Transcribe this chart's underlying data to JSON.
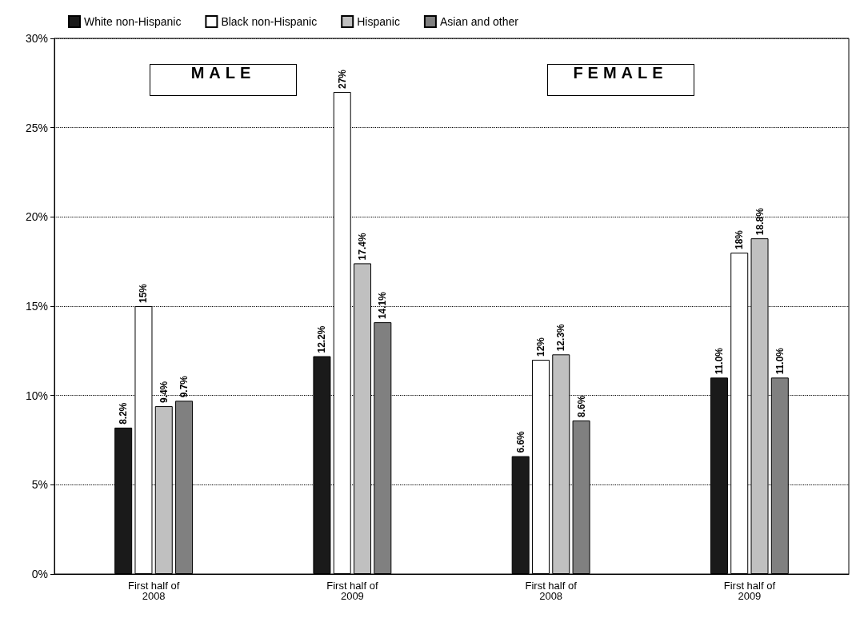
{
  "chart_data": {
    "type": "bar",
    "categories": [
      "First half of\n2008",
      "First half of\n2009",
      "First half of\n2008",
      "First half of\n2009"
    ],
    "series": [
      {
        "name": "White non-Hispanic",
        "color": "#1a1a1a",
        "values": [
          8.2,
          12.2,
          6.6,
          11.0
        ],
        "value_labels": [
          "8.2%",
          "12.2%",
          "6.6%",
          "11.0%"
        ]
      },
      {
        "name": "Black non-Hispanic",
        "color": "#ffffff",
        "values": [
          15,
          27,
          12,
          18
        ],
        "value_labels": [
          "15%",
          "27%",
          "12%",
          "18%"
        ]
      },
      {
        "name": "Hispanic",
        "color": "#c0c0c0",
        "values": [
          9.4,
          17.4,
          12.3,
          18.8
        ],
        "value_labels": [
          "9.4%",
          "17.4%",
          "12.3%",
          "18.8%"
        ]
      },
      {
        "name": "Asian and other",
        "color": "#808080",
        "values": [
          9.7,
          14.1,
          8.6,
          11.0
        ],
        "value_labels": [
          "9.7%",
          "14.1%",
          "8.6%",
          "11.0%"
        ]
      }
    ],
    "annotations": [
      "MALE",
      "FEMALE"
    ],
    "ylim": [
      0,
      30
    ],
    "yticks": [
      {
        "value": 0,
        "label": "0%"
      },
      {
        "value": 5,
        "label": "5%"
      },
      {
        "value": 10,
        "label": "10%"
      },
      {
        "value": 15,
        "label": "15%"
      },
      {
        "value": 20,
        "label": "20%"
      },
      {
        "value": 25,
        "label": "25%"
      },
      {
        "value": 30,
        "label": "30%"
      }
    ],
    "grid": "y",
    "legend": "top left"
  }
}
